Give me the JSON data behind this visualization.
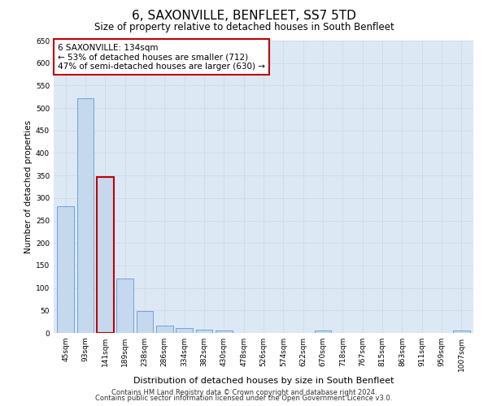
{
  "title": "6, SAXONVILLE, BENFLEET, SS7 5TD",
  "subtitle": "Size of property relative to detached houses in South Benfleet",
  "xlabel": "Distribution of detached houses by size in South Benfleet",
  "ylabel": "Number of detached properties",
  "categories": [
    "45sqm",
    "93sqm",
    "141sqm",
    "189sqm",
    "238sqm",
    "286sqm",
    "334sqm",
    "382sqm",
    "430sqm",
    "478sqm",
    "526sqm",
    "574sqm",
    "622sqm",
    "670sqm",
    "718sqm",
    "767sqm",
    "815sqm",
    "863sqm",
    "911sqm",
    "959sqm",
    "1007sqm"
  ],
  "values": [
    281,
    522,
    346,
    121,
    48,
    16,
    11,
    8,
    5,
    0,
    0,
    0,
    0,
    5,
    0,
    0,
    0,
    0,
    0,
    0,
    5
  ],
  "bar_color": "#c5d8ed",
  "bar_edge_color": "#5b9bd5",
  "highlight_bar_index": 2,
  "highlight_bar_edge_color": "#c00000",
  "annotation_box_text": "6 SAXONVILLE: 134sqm\n← 53% of detached houses are smaller (712)\n47% of semi-detached houses are larger (630) →",
  "grid_color": "#d0d8e8",
  "background_color": "#dde8f5",
  "ylim": [
    0,
    650
  ],
  "yticks": [
    0,
    50,
    100,
    150,
    200,
    250,
    300,
    350,
    400,
    450,
    500,
    550,
    600,
    650
  ],
  "footer_line1": "Contains HM Land Registry data © Crown copyright and database right 2024.",
  "footer_line2": "Contains public sector information licensed under the Open Government Licence v3.0.",
  "title_fontsize": 11,
  "subtitle_fontsize": 8.5,
  "xlabel_fontsize": 8,
  "ylabel_fontsize": 7.5,
  "tick_fontsize": 6.5,
  "annotation_fontsize": 7.5,
  "footer_fontsize": 6
}
